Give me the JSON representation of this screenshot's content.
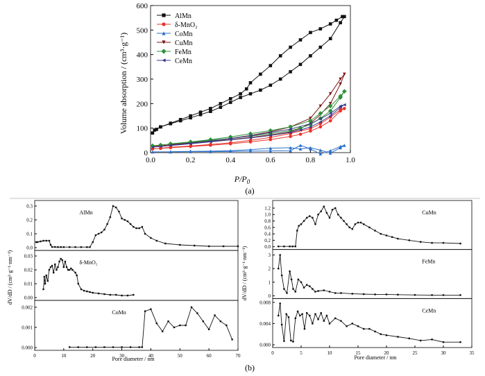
{
  "colors": {
    "AlMn": "#111111",
    "delta": "#e8332b",
    "CoMn": "#2a6fc9",
    "CuMn": "#7a1414",
    "FeMn": "#2f8f3a",
    "CeMn": "#3a3a8c",
    "frame": "#000000",
    "divider": "#888888"
  },
  "panel_a_label": "(a)",
  "panel_b_label": "(b)",
  "chart_data": [
    {
      "id": "isotherm",
      "type": "line",
      "xlabel_main": "P/P",
      "xlabel_sub": "0",
      "ylabel": "Volume absorption / (cm³·g⁻¹)",
      "xlim": [
        0,
        1.0
      ],
      "ylim": [
        0,
        600
      ],
      "xticks": [
        "0.0",
        "0.2",
        "0.4",
        "0.6",
        "0.8",
        "1.0"
      ],
      "yticks": [
        "0",
        "100",
        "200",
        "300",
        "400",
        "500",
        "600"
      ],
      "legend_position": "top-left",
      "series": [
        {
          "name": "AlMn",
          "color_key": "AlMn",
          "marker": "square",
          "x": [
            0.01,
            0.03,
            0.05,
            0.1,
            0.15,
            0.2,
            0.25,
            0.3,
            0.35,
            0.4,
            0.45,
            0.5,
            0.55,
            0.6,
            0.65,
            0.7,
            0.75,
            0.8,
            0.85,
            0.9,
            0.95,
            0.97,
            0.96,
            0.93,
            0.9,
            0.85,
            0.8,
            0.75,
            0.7,
            0.65,
            0.6,
            0.55,
            0.5,
            0.48,
            0.45,
            0.4,
            0.35,
            0.3,
            0.25,
            0.2,
            0.15,
            0.1,
            0.05,
            0.02
          ],
          "y": [
            80,
            95,
            105,
            118,
            130,
            142,
            155,
            168,
            185,
            205,
            225,
            240,
            255,
            275,
            300,
            330,
            360,
            395,
            430,
            465,
            530,
            555,
            555,
            540,
            525,
            505,
            490,
            460,
            430,
            395,
            355,
            320,
            285,
            260,
            240,
            220,
            200,
            180,
            165,
            150,
            135,
            120,
            105,
            92
          ]
        },
        {
          "name": "δ-MnO₂",
          "color_key": "delta",
          "marker": "circle",
          "x": [
            0.01,
            0.05,
            0.1,
            0.2,
            0.3,
            0.4,
            0.5,
            0.6,
            0.7,
            0.75,
            0.8,
            0.85,
            0.9,
            0.95,
            0.97,
            0.95,
            0.9,
            0.85,
            0.8,
            0.7,
            0.6,
            0.5,
            0.4,
            0.3,
            0.2,
            0.1,
            0.05
          ],
          "y": [
            15,
            17,
            20,
            25,
            30,
            36,
            44,
            53,
            66,
            75,
            88,
            105,
            130,
            170,
            180,
            175,
            145,
            118,
            98,
            78,
            62,
            50,
            40,
            33,
            27,
            22,
            18
          ]
        },
        {
          "name": "CoMn",
          "color_key": "CoMn",
          "marker": "triangle-up",
          "x": [
            0.01,
            0.1,
            0.2,
            0.3,
            0.4,
            0.5,
            0.6,
            0.7,
            0.75,
            0.8,
            0.85,
            0.9,
            0.95,
            0.97,
            0.95,
            0.9,
            0.85,
            0.8,
            0.75,
            0.7,
            0.6,
            0.5,
            0.4,
            0.3,
            0.2,
            0.1
          ],
          "y": [
            3,
            3,
            4,
            4,
            5,
            6,
            7,
            8,
            30,
            15,
            -5,
            8,
            25,
            30,
            20,
            -2,
            10,
            20,
            15,
            20,
            18,
            12,
            8,
            6,
            5,
            4
          ]
        },
        {
          "name": "CuMn",
          "color_key": "CuMn",
          "marker": "triangle-down",
          "x": [
            0.01,
            0.05,
            0.1,
            0.2,
            0.3,
            0.4,
            0.5,
            0.6,
            0.7,
            0.75,
            0.8,
            0.85,
            0.9,
            0.95,
            0.97,
            0.95,
            0.9,
            0.85,
            0.8,
            0.7,
            0.6,
            0.5,
            0.4,
            0.3,
            0.2,
            0.1
          ],
          "y": [
            25,
            28,
            32,
            38,
            45,
            53,
            62,
            72,
            85,
            98,
            120,
            155,
            200,
            280,
            320,
            300,
            240,
            190,
            140,
            105,
            85,
            70,
            58,
            48,
            40,
            33
          ]
        },
        {
          "name": "FeMn",
          "color_key": "FeMn",
          "marker": "diamond",
          "x": [
            0.01,
            0.05,
            0.1,
            0.2,
            0.3,
            0.4,
            0.5,
            0.6,
            0.7,
            0.75,
            0.8,
            0.85,
            0.9,
            0.95,
            0.97,
            0.95,
            0.9,
            0.85,
            0.8,
            0.7,
            0.6,
            0.5,
            0.4,
            0.3,
            0.2,
            0.1
          ],
          "y": [
            28,
            31,
            35,
            42,
            50,
            58,
            67,
            77,
            90,
            100,
            115,
            140,
            170,
            225,
            250,
            230,
            190,
            160,
            130,
            105,
            90,
            77,
            64,
            53,
            44,
            36
          ]
        },
        {
          "name": "CeMn",
          "color_key": "CeMn",
          "marker": "triangle-left",
          "x": [
            0.01,
            0.05,
            0.1,
            0.2,
            0.3,
            0.4,
            0.5,
            0.6,
            0.7,
            0.75,
            0.8,
            0.85,
            0.9,
            0.95,
            0.97,
            0.95,
            0.9,
            0.85,
            0.8,
            0.7,
            0.6,
            0.5,
            0.4,
            0.3,
            0.2,
            0.1
          ],
          "y": [
            22,
            25,
            29,
            36,
            44,
            52,
            60,
            70,
            82,
            92,
            105,
            125,
            150,
            185,
            195,
            190,
            160,
            138,
            118,
            96,
            82,
            69,
            57,
            47,
            38,
            30
          ]
        }
      ]
    },
    {
      "id": "pore-left",
      "type": "line",
      "xlabel": "Pore diameter / nm",
      "ylabel": "dV/dD / (cm³·g⁻¹·nm⁻¹)",
      "xlim": [
        0,
        70
      ],
      "xticks": [
        "0",
        "10",
        "20",
        "30",
        "40",
        "50",
        "60",
        "70"
      ],
      "panels": [
        {
          "name": "AlMn",
          "ylim": [
            0,
            0.32
          ],
          "yticks": [
            "0.0",
            "0.1",
            "0.2",
            "0.3"
          ],
          "x": [
            0.5,
            1,
            2,
            3,
            4,
            5,
            5.5,
            6,
            7,
            8,
            9,
            10,
            12,
            14,
            16,
            18,
            19,
            20,
            21,
            22,
            23,
            24,
            25,
            26,
            27,
            28,
            29,
            30,
            31,
            32,
            33,
            34,
            35,
            36,
            37,
            38,
            40,
            42,
            45,
            50,
            55,
            60,
            65,
            70
          ],
          "y": [
            0.04,
            0.04,
            0.045,
            0.05,
            0.05,
            0.05,
            0.02,
            0.005,
            0.005,
            0.004,
            0.004,
            0.004,
            0.004,
            0.004,
            0.004,
            0.004,
            0.004,
            0.04,
            0.09,
            0.1,
            0.11,
            0.13,
            0.17,
            0.22,
            0.3,
            0.29,
            0.26,
            0.21,
            0.2,
            0.19,
            0.17,
            0.15,
            0.14,
            0.14,
            0.15,
            0.1,
            0.07,
            0.05,
            0.03,
            0.02,
            0.015,
            0.01,
            0.01,
            0.01
          ]
        },
        {
          "name": "δ-MnO₂",
          "ylim": [
            0,
            0.032
          ],
          "yticks": [
            "0.00",
            "0.01",
            "0.02",
            "0.03"
          ],
          "x": [
            3,
            3.3,
            3.6,
            4,
            4.5,
            5,
            5.5,
            6,
            6.5,
            7,
            7.5,
            8,
            8.5,
            9,
            9.5,
            10,
            10.5,
            11,
            11.5,
            12,
            12.5,
            13,
            14,
            14.5,
            15,
            16,
            17,
            18,
            19,
            20,
            22,
            24,
            26,
            28,
            30,
            32,
            34
          ],
          "y": [
            0.006,
            0.015,
            0.01,
            0.016,
            0.012,
            0.02,
            0.022,
            0.023,
            0.018,
            0.024,
            0.02,
            0.022,
            0.026,
            0.028,
            0.027,
            0.022,
            0.026,
            0.022,
            0.02,
            0.02,
            0.021,
            0.02,
            0.018,
            0.016,
            0.01,
            0.006,
            0.005,
            0.0045,
            0.004,
            0.0035,
            0.003,
            0.0025,
            0.002,
            0.002,
            0.0015,
            0.0015,
            0.002
          ]
        },
        {
          "name": "CoMn",
          "ylim": [
            0,
            0.0022
          ],
          "yticks": [
            "0.000",
            "0.001",
            "0.002"
          ],
          "x": [
            12,
            15,
            18,
            21,
            24,
            27,
            30,
            33,
            36,
            37,
            38,
            40,
            42,
            44,
            46,
            48,
            50,
            52,
            54,
            56,
            58,
            60,
            62,
            64,
            66,
            68
          ],
          "y": [
            2e-05,
            2e-05,
            2e-05,
            2e-05,
            2e-05,
            2e-05,
            2e-05,
            2e-05,
            2e-05,
            2e-05,
            0.0018,
            0.0019,
            0.0012,
            0.0008,
            0.0013,
            0.001,
            0.0011,
            0.0011,
            0.002,
            0.0017,
            0.0013,
            0.0009,
            0.0016,
            0.0013,
            0.0011,
            0.0004
          ]
        }
      ]
    },
    {
      "id": "pore-right",
      "type": "line",
      "xlabel": "Pore diameter / nm",
      "ylabel": "dV/dD / (cm³·g⁻¹·nm⁻¹)",
      "xlim": [
        0,
        35
      ],
      "xticks": [
        "0",
        "5",
        "10",
        "15",
        "20",
        "25",
        "30",
        "35"
      ],
      "panels": [
        {
          "name": "CuMn",
          "ylim": [
            0,
            1.35
          ],
          "yticks": [
            "0.0",
            "0.2",
            "0.4",
            "0.6",
            "0.8",
            "1.0",
            "1.2"
          ],
          "x": [
            1,
            2,
            3,
            3.5,
            4,
            4.3,
            4.6,
            5,
            5.5,
            6,
            6.5,
            7,
            7.5,
            8,
            8.5,
            9,
            9.5,
            10,
            10.5,
            11,
            11.5,
            12,
            12.5,
            13,
            13.5,
            14,
            14.5,
            15,
            15.5,
            16,
            17,
            18,
            19,
            20,
            21,
            22,
            24,
            26,
            28,
            30,
            33
          ],
          "y": [
            0.01,
            0.01,
            0.01,
            0.01,
            0.01,
            0.5,
            0.65,
            0.7,
            0.8,
            0.9,
            0.95,
            0.9,
            0.7,
            1.0,
            1.1,
            1.25,
            1.05,
            0.9,
            1.15,
            1.2,
            1.0,
            0.9,
            0.8,
            0.7,
            0.6,
            0.55,
            0.7,
            0.75,
            0.75,
            0.7,
            0.6,
            0.5,
            0.4,
            0.35,
            0.3,
            0.25,
            0.2,
            0.15,
            0.12,
            0.12,
            0.1
          ]
        },
        {
          "name": "FeMn",
          "ylim": [
            0,
            3.2
          ],
          "yticks": [
            "0",
            "1",
            "2",
            "3"
          ],
          "x": [
            1,
            1.3,
            1.6,
            2,
            2.5,
            3,
            3.3,
            3.6,
            4,
            4.5,
            5,
            5.5,
            6,
            6.5,
            7,
            7.5,
            8,
            9,
            10,
            11,
            12,
            14,
            16,
            18,
            20,
            22,
            25,
            28,
            30,
            33
          ],
          "y": [
            2.0,
            3.0,
            1.5,
            0.5,
            0.2,
            1.8,
            1.2,
            0.5,
            0.3,
            1.2,
            1.0,
            0.6,
            0.8,
            0.7,
            0.5,
            0.3,
            0.35,
            0.4,
            0.3,
            0.2,
            0.2,
            0.15,
            0.12,
            0.1,
            0.1,
            0.08,
            0.06,
            0.05,
            0.05,
            0.05
          ]
        },
        {
          "name": "CeMn",
          "ylim": [
            0,
            0.0082
          ],
          "yticks": [
            "0.000",
            "0.004",
            "0.008"
          ],
          "x": [
            1,
            1.3,
            1.6,
            2,
            2.4,
            2.8,
            3.2,
            3.6,
            4,
            4.4,
            4.8,
            5.2,
            5.6,
            6,
            6.5,
            7,
            7.5,
            8,
            8.5,
            9,
            9.5,
            10,
            11,
            12,
            13,
            14,
            15,
            16,
            17,
            18,
            19,
            20,
            22,
            24,
            26,
            28,
            30,
            33
          ],
          "y": [
            0.0055,
            0.0078,
            0.0038,
            0.0007,
            0.0058,
            0.0052,
            0.0008,
            0.0006,
            0.005,
            0.0063,
            0.0055,
            0.0058,
            0.003,
            0.006,
            0.0055,
            0.004,
            0.0058,
            0.0048,
            0.006,
            0.0045,
            0.0055,
            0.004,
            0.005,
            0.0045,
            0.0035,
            0.004,
            0.0035,
            0.003,
            0.003,
            0.0025,
            0.002,
            0.0018,
            0.0015,
            0.0012,
            0.0008,
            0.001,
            0.0005,
            0.0005
          ]
        }
      ]
    }
  ]
}
